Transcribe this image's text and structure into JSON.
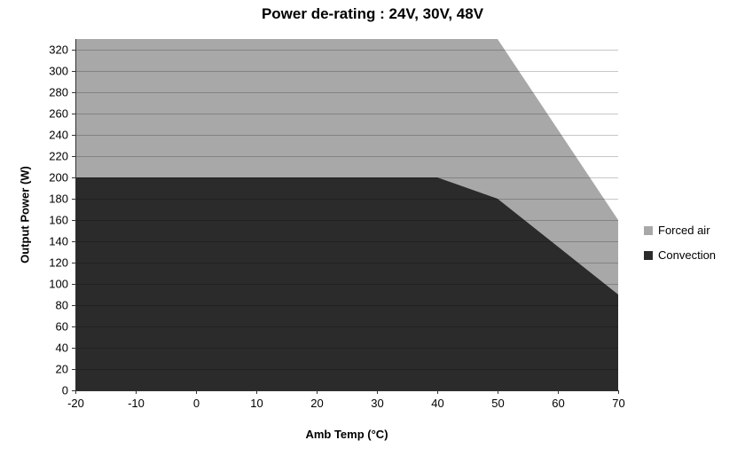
{
  "chart_data": {
    "type": "area",
    "title": "Power de-rating : 24V, 30V, 48V",
    "xlabel": "Amb Temp (°C)",
    "ylabel": "Output Power (W)",
    "xlim": [
      -20,
      70
    ],
    "ylim": [
      0,
      330
    ],
    "x_ticks": [
      -20,
      -10,
      0,
      10,
      20,
      30,
      40,
      50,
      60,
      70
    ],
    "y_ticks": [
      0,
      20,
      40,
      60,
      80,
      100,
      120,
      140,
      160,
      180,
      200,
      220,
      240,
      260,
      280,
      300,
      320
    ],
    "grid": "horizontal",
    "legend_position": "right",
    "series": [
      {
        "name": "Forced air",
        "color": "#a8a8a8",
        "points": [
          [
            -20,
            330
          ],
          [
            50,
            330
          ],
          [
            70,
            160
          ]
        ]
      },
      {
        "name": "Convection",
        "color": "#2b2b2b",
        "points": [
          [
            -20,
            200
          ],
          [
            40,
            200
          ],
          [
            50,
            180
          ],
          [
            70,
            90
          ]
        ]
      }
    ]
  }
}
